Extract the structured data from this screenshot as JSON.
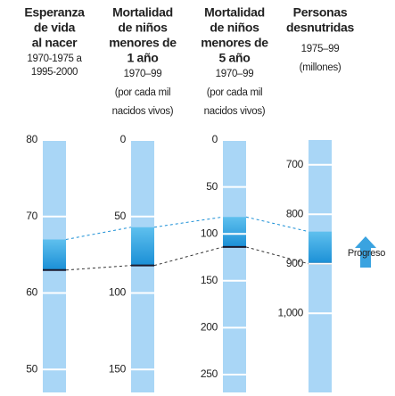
{
  "chart_data": {
    "type": "parallel-scale",
    "annotation": "Progreso",
    "columns": [
      {
        "title": [
          "Esperanza",
          "de vida",
          "al nacer"
        ],
        "subtitle": [
          "1970-1975 a",
          "1995-2000"
        ],
        "ylim": [
          80,
          47
        ],
        "yticks": [
          80,
          70,
          60,
          50
        ],
        "start": 63,
        "end": 67
      },
      {
        "title": [
          "Mortalidad",
          "de niños",
          "menores de",
          "1 año"
        ],
        "subtitle": [
          "1970–99",
          "(por cada mil",
          "nacidos vivos)"
        ],
        "ylim": [
          0,
          165
        ],
        "yticks": [
          0,
          50,
          100,
          150
        ],
        "start": 82,
        "end": 57
      },
      {
        "title": [
          "Mortalidad",
          "de niños",
          "menores de",
          "5 año"
        ],
        "subtitle": [
          "1970–99",
          "(por cada mil",
          "nacidos vivos)"
        ],
        "ylim": [
          0,
          269
        ],
        "yticks": [
          0,
          50,
          100,
          150,
          200,
          250
        ],
        "start": 114,
        "end": 82
      },
      {
        "title": [
          "Personas",
          "desnutridas"
        ],
        "subtitle": [
          "1975–99",
          "(millones)"
        ],
        "ylim": [
          650,
          1160
        ],
        "yticks": [
          700,
          800,
          900,
          {
            "value": 1000,
            "label": "1,000"
          }
        ],
        "start": 900,
        "end": 835
      }
    ]
  }
}
